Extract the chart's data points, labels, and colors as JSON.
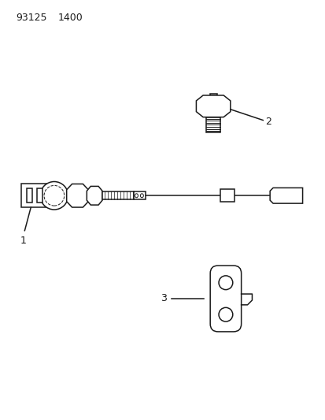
{
  "title_line1": "93125",
  "title_line2": "1400",
  "background_color": "#ffffff",
  "line_color": "#1a1a1a",
  "label1": "1",
  "label2": "2",
  "label3": "3",
  "lw": 1.1
}
